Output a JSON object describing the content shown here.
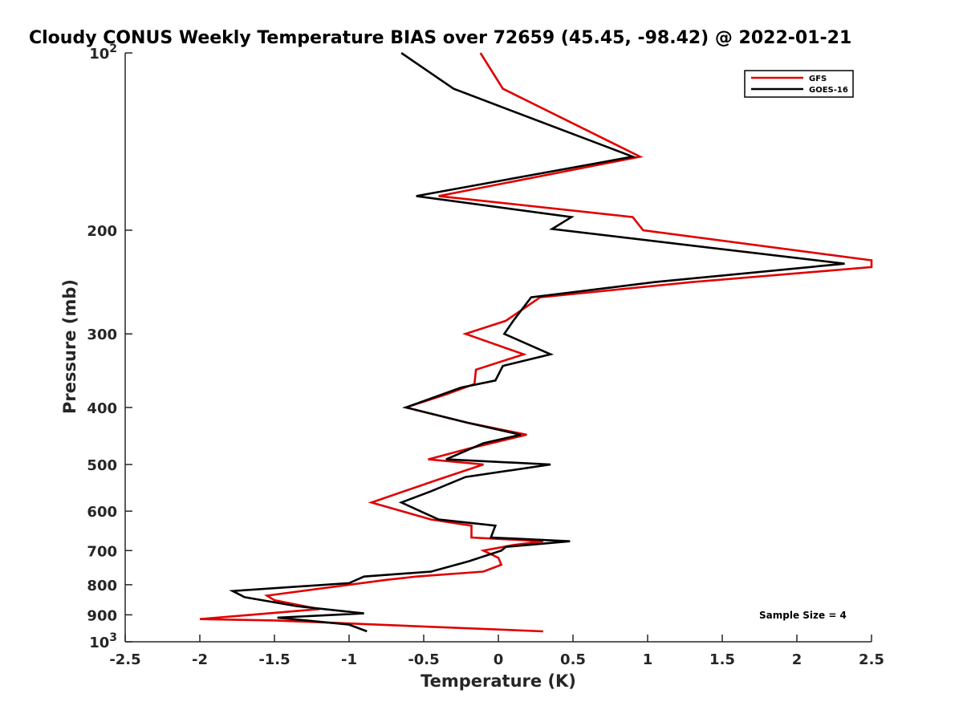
{
  "chart_data": {
    "type": "line",
    "title": "Cloudy CONUS Weekly Temperature BIAS over 72659 (45.45, -98.42) @ 2022-01-21",
    "xlabel": "Temperature (K)",
    "ylabel": "Pressure (mb)",
    "xlim": [
      -2.5,
      2.5
    ],
    "ylim": [
      100,
      1000
    ],
    "yscale": "log",
    "y_reversed": true,
    "grid": false,
    "legend_position": "top-right",
    "x_ticks": [
      -2.5,
      -2,
      -1.5,
      -1,
      -0.5,
      0,
      0.5,
      1,
      1.5,
      2,
      2.5
    ],
    "x_tick_labels": [
      "-2.5",
      "-2",
      "-1.5",
      "-1",
      "-0.5",
      "0",
      "0.5",
      "1",
      "1.5",
      "2",
      "2.5"
    ],
    "y_ticks": [
      100,
      200,
      300,
      400,
      500,
      600,
      700,
      800,
      900,
      1000
    ],
    "y_tick_labels": [
      {
        "base": "10",
        "exp": "2"
      },
      {
        "base": "200",
        "exp": ""
      },
      {
        "base": "300",
        "exp": ""
      },
      {
        "base": "400",
        "exp": ""
      },
      {
        "base": "500",
        "exp": ""
      },
      {
        "base": "600",
        "exp": ""
      },
      {
        "base": "700",
        "exp": ""
      },
      {
        "base": "800",
        "exp": ""
      },
      {
        "base": "900",
        "exp": ""
      },
      {
        "base": "10",
        "exp": "3"
      }
    ],
    "series": [
      {
        "name": "GFS",
        "color": "#e00000",
        "points": [
          [
            -0.12,
            100
          ],
          [
            0.03,
            115
          ],
          [
            0.95,
            150
          ],
          [
            -0.4,
            175
          ],
          [
            0.9,
            190
          ],
          [
            0.97,
            200
          ],
          [
            2.5,
            225
          ],
          [
            2.5,
            231
          ],
          [
            1.3,
            245
          ],
          [
            0.28,
            260
          ],
          [
            0.05,
            285
          ],
          [
            -0.22,
            300
          ],
          [
            0.17,
            325
          ],
          [
            -0.15,
            345
          ],
          [
            -0.16,
            365
          ],
          [
            -0.35,
            380
          ],
          [
            -0.62,
            400
          ],
          [
            -0.2,
            425
          ],
          [
            0.19,
            445
          ],
          [
            -0.2,
            470
          ],
          [
            -0.47,
            490
          ],
          [
            -0.1,
            500
          ],
          [
            -0.4,
            530
          ],
          [
            -0.85,
            580
          ],
          [
            -0.45,
            620
          ],
          [
            -0.18,
            635
          ],
          [
            -0.18,
            665
          ],
          [
            0.3,
            675
          ],
          [
            0.1,
            685
          ],
          [
            -0.1,
            700
          ],
          [
            0.0,
            720
          ],
          [
            0.02,
            740
          ],
          [
            -0.1,
            760
          ],
          [
            -0.55,
            775
          ],
          [
            -0.75,
            785
          ],
          [
            -1.55,
            835
          ],
          [
            -1.5,
            850
          ],
          [
            -1.2,
            880
          ],
          [
            -2.0,
            915
          ],
          [
            -1.5,
            920
          ],
          [
            0.3,
            960
          ]
        ]
      },
      {
        "name": "GOES-16",
        "color": "#000000",
        "points": [
          [
            -0.65,
            100
          ],
          [
            -0.3,
            115
          ],
          [
            0.9,
            150
          ],
          [
            -0.55,
            175
          ],
          [
            0.49,
            190
          ],
          [
            0.36,
            199
          ],
          [
            2.32,
            228
          ],
          [
            1.05,
            245
          ],
          [
            0.22,
            260
          ],
          [
            0.1,
            285
          ],
          [
            0.04,
            300
          ],
          [
            0.35,
            325
          ],
          [
            0.03,
            340
          ],
          [
            -0.02,
            360
          ],
          [
            -0.25,
            370
          ],
          [
            -0.62,
            400
          ],
          [
            -0.2,
            425
          ],
          [
            0.15,
            445
          ],
          [
            -0.1,
            460
          ],
          [
            -0.35,
            490
          ],
          [
            0.35,
            500
          ],
          [
            -0.22,
            525
          ],
          [
            -0.45,
            555
          ],
          [
            -0.65,
            580
          ],
          [
            -0.4,
            620
          ],
          [
            -0.02,
            635
          ],
          [
            -0.05,
            665
          ],
          [
            0.48,
            675
          ],
          [
            0.05,
            690
          ],
          [
            0.02,
            700
          ],
          [
            -0.2,
            730
          ],
          [
            -0.45,
            760
          ],
          [
            -0.9,
            775
          ],
          [
            -1.0,
            795
          ],
          [
            -1.78,
            820
          ],
          [
            -1.7,
            840
          ],
          [
            -1.35,
            870
          ],
          [
            -0.9,
            895
          ],
          [
            -1.48,
            910
          ],
          [
            -1.0,
            935
          ],
          [
            -0.88,
            960
          ]
        ]
      }
    ],
    "annotations": [
      {
        "text": "Sample Size = 4",
        "position": "bottom-right"
      }
    ]
  }
}
